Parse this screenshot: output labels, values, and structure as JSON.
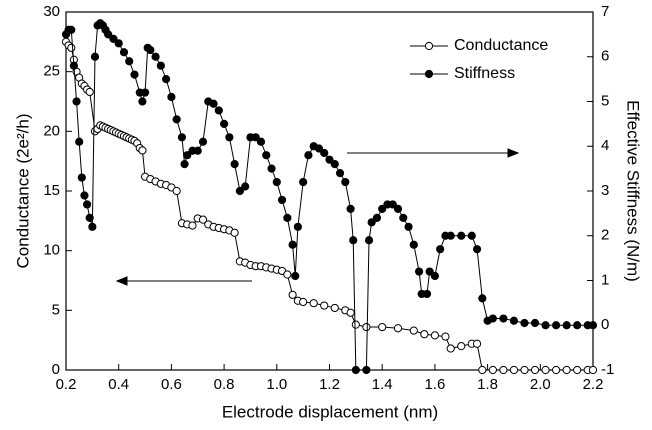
{
  "chart_data": {
    "type": "line",
    "xlabel": "Electrode displacement (nm)",
    "ylabel": "Conductance (2e²/h)",
    "y2label": "Effective Stiffness (N/m)",
    "xlim": [
      0.2,
      2.2
    ],
    "xticks": [
      0.2,
      0.4,
      0.6,
      0.8,
      {
        "value": 1,
        "label": "1.0"
      },
      1.2,
      1.4,
      1.6,
      1.8,
      {
        "value": 2,
        "label": "2.0"
      },
      2.2
    ],
    "ylim": [
      0,
      30
    ],
    "yticks": [
      0,
      5,
      10,
      15,
      20,
      25,
      30
    ],
    "y2lim": [
      -1,
      7
    ],
    "y2ticks": [
      -1,
      0,
      1,
      2,
      3,
      4,
      5,
      6,
      7
    ],
    "legend": "upper right",
    "series": [
      {
        "name": "Conductance",
        "color": "#000000",
        "marker": "open",
        "x": [
          0.2,
          0.21,
          0.22,
          0.23,
          0.24,
          0.25,
          0.26,
          0.27,
          0.28,
          0.29,
          0.31,
          0.32,
          0.33,
          0.34,
          0.35,
          0.36,
          0.37,
          0.38,
          0.39,
          0.4,
          0.41,
          0.42,
          0.43,
          0.44,
          0.45,
          0.46,
          0.47,
          0.48,
          0.49,
          0.5,
          0.52,
          0.54,
          0.56,
          0.58,
          0.6,
          0.62,
          0.64,
          0.66,
          0.68,
          0.7,
          0.72,
          0.74,
          0.76,
          0.78,
          0.8,
          0.82,
          0.84,
          0.86,
          0.88,
          0.9,
          0.92,
          0.94,
          0.96,
          0.98,
          1.0,
          1.02,
          1.04,
          1.06,
          1.08,
          1.1,
          1.14,
          1.18,
          1.22,
          1.26,
          1.28,
          1.3,
          1.34,
          1.4,
          1.46,
          1.52,
          1.56,
          1.6,
          1.64,
          1.66,
          1.7,
          1.74,
          1.76,
          1.78,
          1.82,
          1.86,
          1.9,
          1.94,
          1.98,
          2.02,
          2.06,
          2.1,
          2.14,
          2.18,
          2.2
        ],
        "values": [
          27.5,
          27.2,
          27.0,
          26.0,
          25.0,
          24.5,
          24.0,
          23.8,
          23.5,
          23.3,
          20.0,
          20.2,
          20.5,
          20.4,
          20.3,
          20.2,
          20.1,
          20.0,
          19.9,
          19.8,
          19.7,
          19.6,
          19.5,
          19.4,
          19.3,
          19.2,
          19.0,
          18.6,
          18.4,
          16.2,
          16.0,
          15.8,
          15.6,
          15.5,
          15.3,
          15.0,
          12.3,
          12.2,
          12.1,
          12.7,
          12.6,
          12.2,
          12.0,
          11.9,
          11.8,
          11.7,
          11.5,
          9.1,
          9.0,
          8.8,
          8.7,
          8.7,
          8.6,
          8.5,
          8.4,
          8.3,
          8.0,
          6.3,
          5.8,
          5.7,
          5.6,
          5.4,
          5.2,
          5.0,
          4.8,
          3.8,
          3.6,
          3.6,
          3.5,
          3.3,
          3.0,
          2.9,
          2.8,
          1.8,
          2.0,
          2.2,
          2.2,
          0,
          0,
          0,
          0,
          0,
          0,
          0,
          0,
          0,
          0,
          0,
          0
        ]
      },
      {
        "name": "Stiffness",
        "color": "#000000",
        "marker": "filled",
        "axis": "y2",
        "x": [
          0.2,
          0.21,
          0.22,
          0.23,
          0.24,
          0.25,
          0.26,
          0.27,
          0.28,
          0.29,
          0.3,
          0.31,
          0.32,
          0.33,
          0.34,
          0.35,
          0.36,
          0.38,
          0.4,
          0.42,
          0.44,
          0.46,
          0.48,
          0.49,
          0.5,
          0.51,
          0.52,
          0.54,
          0.56,
          0.58,
          0.6,
          0.62,
          0.64,
          0.65,
          0.66,
          0.68,
          0.7,
          0.72,
          0.74,
          0.76,
          0.78,
          0.8,
          0.82,
          0.84,
          0.86,
          0.88,
          0.9,
          0.92,
          0.94,
          0.96,
          0.98,
          1.0,
          1.02,
          1.04,
          1.06,
          1.07,
          1.08,
          1.1,
          1.12,
          1.14,
          1.16,
          1.18,
          1.2,
          1.22,
          1.24,
          1.26,
          1.28,
          1.29,
          1.3,
          1.34,
          1.35,
          1.36,
          1.38,
          1.4,
          1.42,
          1.44,
          1.46,
          1.48,
          1.5,
          1.52,
          1.54,
          1.55,
          1.57,
          1.58,
          1.6,
          1.62,
          1.64,
          1.66,
          1.7,
          1.74,
          1.76,
          1.78,
          1.8,
          1.82,
          1.86,
          1.9,
          1.94,
          1.98,
          2.02,
          2.06,
          2.1,
          2.14,
          2.18,
          2.2
        ],
        "values": [
          6.5,
          6.6,
          6.6,
          5.8,
          5.0,
          4.1,
          3.3,
          2.9,
          2.7,
          2.4,
          2.2,
          6.0,
          6.7,
          6.75,
          6.7,
          6.6,
          6.5,
          6.4,
          6.3,
          6.1,
          5.9,
          5.6,
          5.2,
          5.0,
          5.2,
          6.2,
          6.15,
          6.0,
          5.8,
          5.5,
          5.1,
          4.6,
          4.2,
          3.6,
          3.8,
          3.9,
          3.9,
          4.1,
          5.0,
          4.95,
          4.8,
          4.5,
          4.2,
          3.6,
          3.0,
          3.1,
          4.2,
          4.2,
          4.1,
          3.8,
          3.5,
          3.2,
          2.8,
          2.4,
          1.8,
          1.1,
          2.2,
          3.2,
          3.8,
          4.0,
          3.95,
          3.85,
          3.7,
          3.6,
          3.4,
          3.2,
          2.6,
          1.9,
          -1,
          -1,
          1.9,
          2.3,
          2.4,
          2.6,
          2.7,
          2.7,
          2.6,
          2.4,
          2.2,
          1.8,
          1.2,
          0.7,
          0.7,
          1.2,
          1.1,
          1.7,
          2.0,
          2.0,
          2.0,
          2.0,
          1.7,
          0.6,
          0.1,
          0.15,
          0.15,
          0.1,
          0.05,
          0.05,
          0.0,
          0.0,
          0.0,
          0.0,
          0.0,
          0.0
        ]
      }
    ]
  }
}
